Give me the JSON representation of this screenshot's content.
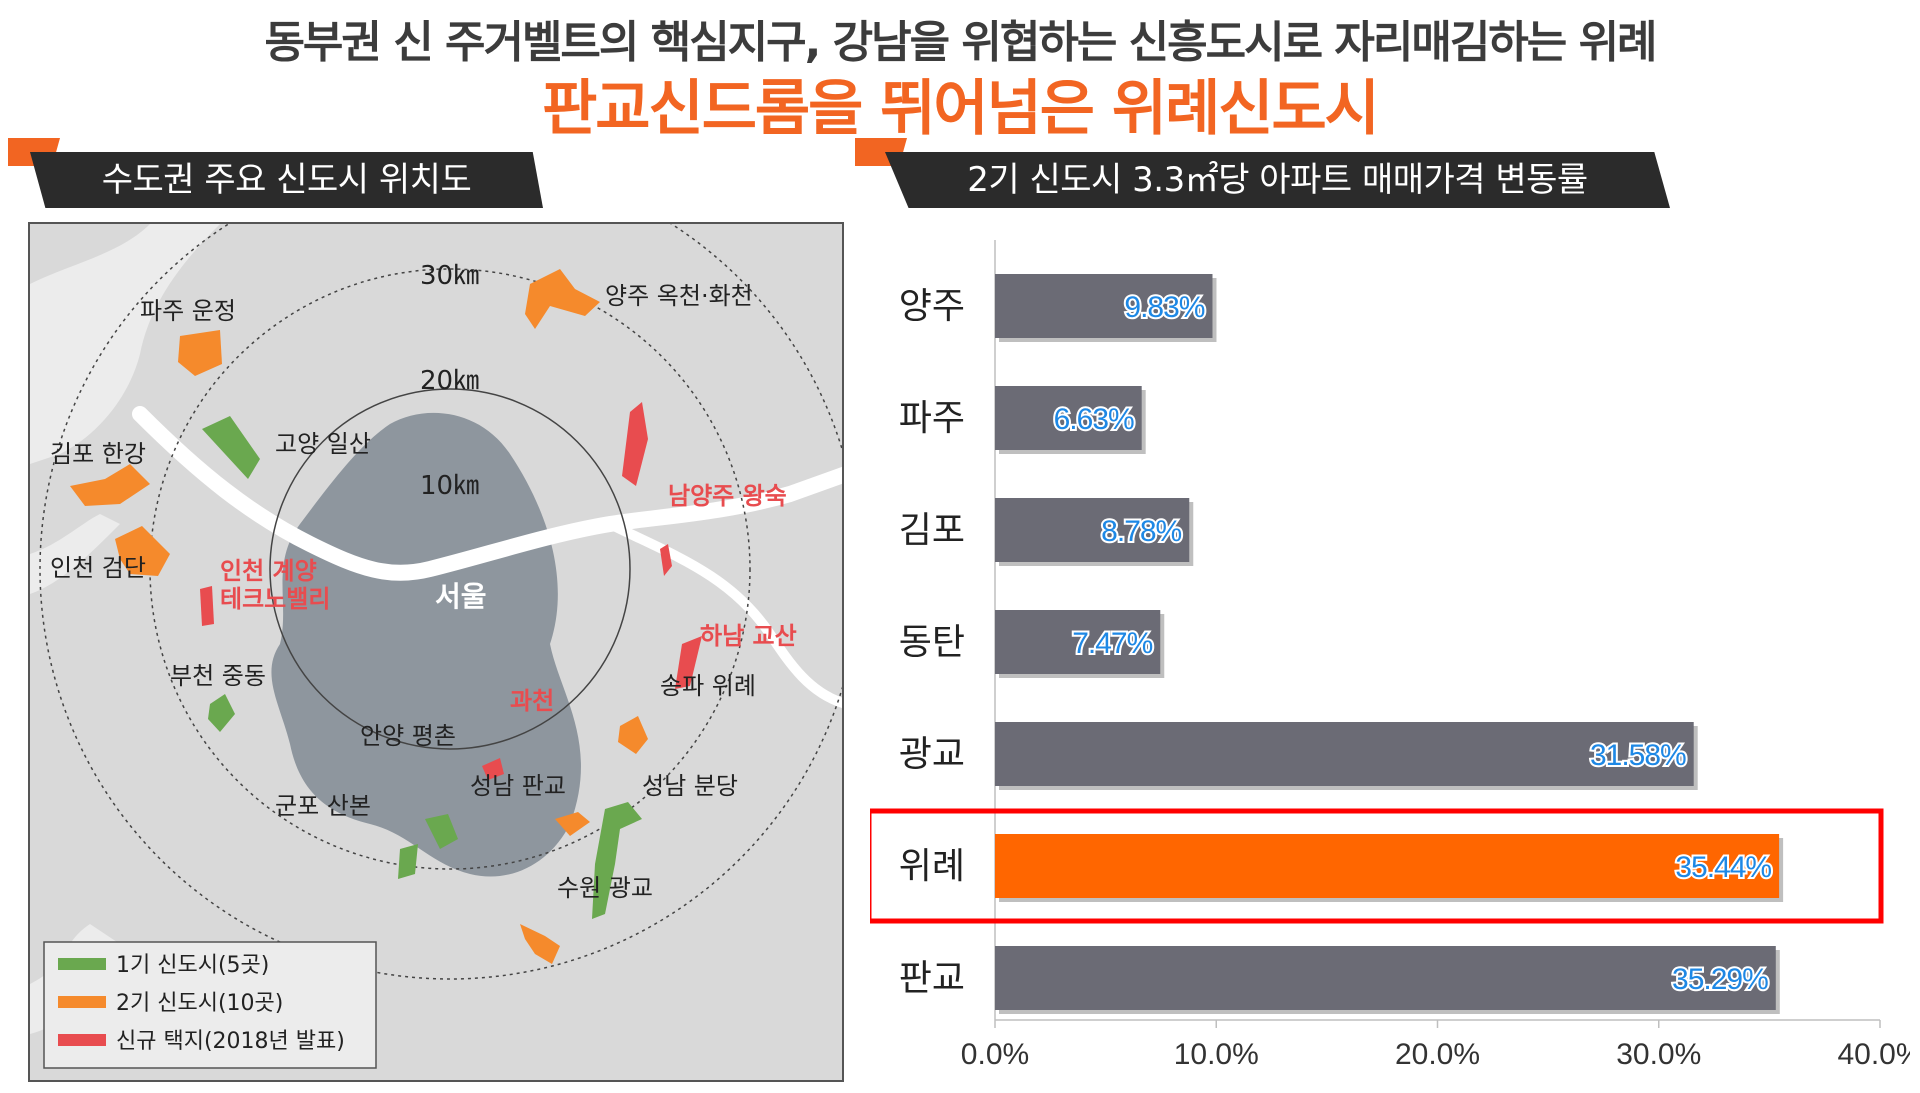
{
  "header": {
    "title_main": "동부권 신 주거벨트의 핵심지구, 강남을 위협하는 신흥도시로 자리매김하는 위례",
    "title_sub": "판교신드롬을 뛰어넘은 위례신도시"
  },
  "map": {
    "section_title": "수도권 주요 신도시 위치도",
    "rings": [
      "30㎞",
      "20㎞",
      "10㎞"
    ],
    "center_label": "서울",
    "places": {
      "yangju": "양주 옥천·화천",
      "paju": "파주 운정",
      "goyang": "고양 일산",
      "gimpo": "김포 한강",
      "incheon_geomdan": "인천 검단",
      "incheon_gyeyang": "인천 계양\n테크노밸리",
      "namyangju": "남양주 왕숙",
      "hanam": "하남 교산",
      "songpa": "송파 위례",
      "gwacheon": "과천",
      "bucheon": "부천 중동",
      "anyang": "안양 평촌",
      "seongnam_pangyo": "성남 판교",
      "seongnam_bundang": "성남 분당",
      "gunpo": "군포 산본",
      "suwon": "수원 광교"
    },
    "legend": [
      {
        "label": "1기 신도시(5곳)",
        "color": "#6aa84f"
      },
      {
        "label": "2기 신도시(10곳)",
        "color": "#f58a2c"
      },
      {
        "label": "신규 택지(2018년 발표)",
        "color": "#e84c4f"
      }
    ]
  },
  "chart_section_title": "2기 신도시 3.3㎡당 아파트 매매가격 변동률",
  "chart_data": {
    "type": "bar",
    "orientation": "horizontal",
    "categories": [
      "양주",
      "파주",
      "김포",
      "동탄",
      "광교",
      "위례",
      "판교"
    ],
    "values": [
      9.83,
      6.63,
      8.78,
      7.47,
      31.58,
      35.44,
      35.29
    ],
    "data_labels": [
      "9.83%",
      "6.63%",
      "8.78%",
      "7.47%",
      "31.58%",
      "35.44%",
      "35.29%"
    ],
    "xlim": [
      0,
      40
    ],
    "x_ticks": [
      "0.0%",
      "10.0%",
      "20.0%",
      "30.0%",
      "40.0%"
    ],
    "highlight_category": "위례",
    "colors": {
      "bar": "#6b6b75",
      "highlight": "#ff6600",
      "highlight_box": "#ff0000",
      "label_text": "#1e88e5"
    },
    "grid": false,
    "legend": "none"
  }
}
